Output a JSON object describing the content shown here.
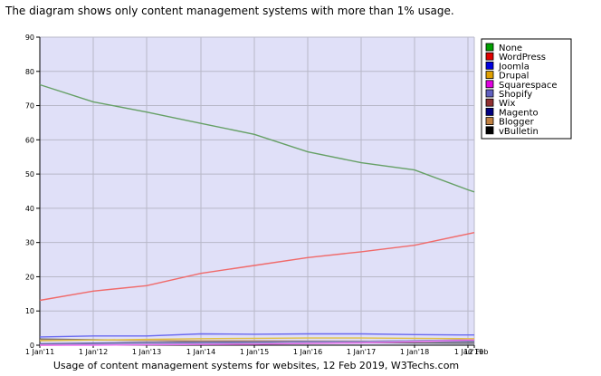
{
  "intro_text": "The diagram shows only content management systems with more than 1% usage.",
  "chart_data": {
    "type": "line",
    "title": "Usage of content management systems for websites, 12 Feb 2019, W3Techs.com",
    "xlabel": "",
    "ylabel": "",
    "x": [
      "1 Jan'11",
      "1 Jan'12",
      "1 Jan'13",
      "1 Jan'14",
      "1 Jan'15",
      "1 Jan'16",
      "1 Jan'17",
      "1 Jan'18",
      "1 Jan'19",
      "12 Feb"
    ],
    "x_ticks_shown": [
      "1 Jan'11",
      "1 Jan'12",
      "1 Jan'13",
      "1 Jan'14",
      "1 Jan'15",
      "1 Jan'16",
      "1 Jan'17",
      "1 Jan'18",
      "1 Jan'19",
      "12 Feb"
    ],
    "ylim": [
      0,
      90
    ],
    "yticks": [
      0,
      10,
      20,
      30,
      40,
      50,
      60,
      70,
      80,
      90
    ],
    "grid": true,
    "legend_position": "right",
    "background_color": "#e0e0f8",
    "series": [
      {
        "name": "None",
        "color": "#66a066",
        "legend_color": "#00a000",
        "values": [
          76.1,
          71.1,
          68.1,
          64.8,
          61.6,
          56.5,
          53.3,
          51.2,
          45.4,
          44.8
        ]
      },
      {
        "name": "WordPress",
        "color": "#f06a6a",
        "legend_color": "#e00000",
        "values": [
          13.1,
          15.8,
          17.4,
          21.0,
          23.3,
          25.6,
          27.3,
          29.2,
          32.5,
          32.9
        ]
      },
      {
        "name": "Joomla",
        "color": "#6a6af0",
        "legend_color": "#0000e0",
        "values": [
          2.4,
          2.7,
          2.7,
          3.3,
          3.2,
          3.3,
          3.3,
          3.1,
          3.0,
          3.0
        ]
      },
      {
        "name": "Drupal",
        "color": "#e0c040",
        "legend_color": "#e0a000",
        "values": [
          1.3,
          1.5,
          1.7,
          1.9,
          2.0,
          2.1,
          2.1,
          2.0,
          1.9,
          1.9
        ]
      },
      {
        "name": "Squarespace",
        "color": "#f070f0",
        "legend_color": "#e000e0",
        "values": [
          0.0,
          0.0,
          0.1,
          0.2,
          0.3,
          0.5,
          0.7,
          1.0,
          1.5,
          1.5
        ]
      },
      {
        "name": "Shopify",
        "color": "#9090d0",
        "legend_color": "#6060c0",
        "values": [
          0.1,
          0.2,
          0.3,
          0.5,
          0.7,
          0.9,
          1.1,
          1.3,
          1.6,
          1.6
        ]
      },
      {
        "name": "Wix",
        "color": "#b06060",
        "legend_color": "#903030",
        "values": [
          0.0,
          0.1,
          0.2,
          0.4,
          0.7,
          0.9,
          1.1,
          1.3,
          1.5,
          1.5
        ]
      },
      {
        "name": "Magento",
        "color": "#6060a0",
        "legend_color": "#000080",
        "values": [
          0.4,
          0.6,
          0.8,
          0.9,
          1.0,
          1.1,
          1.1,
          1.1,
          1.1,
          1.1
        ]
      },
      {
        "name": "Blogger",
        "color": "#d0a070",
        "legend_color": "#c08040",
        "values": [
          1.5,
          1.5,
          1.4,
          1.3,
          1.3,
          1.2,
          1.2,
          1.1,
          1.1,
          1.1
        ]
      },
      {
        "name": "vBulletin",
        "color": "#606060",
        "legend_color": "#000000",
        "values": [
          1.8,
          1.6,
          1.4,
          1.2,
          1.0,
          0.9,
          0.8,
          0.7,
          0.6,
          0.6
        ]
      }
    ]
  }
}
